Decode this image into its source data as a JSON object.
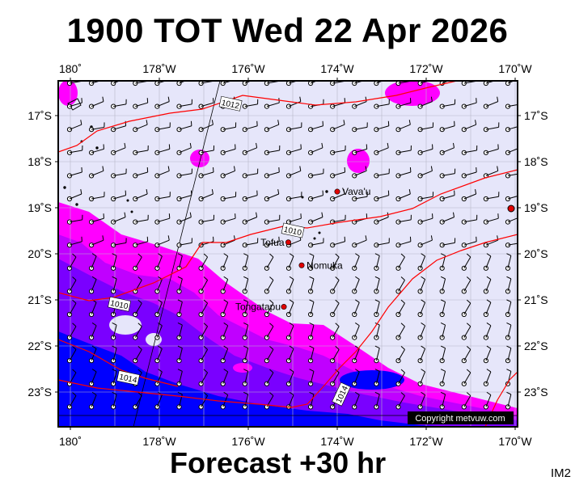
{
  "title": "1900 TOT Wed 22 Apr 2026",
  "subtitle": "Forecast +30 hr",
  "corner_label": "IM2",
  "copyright": "Copyright metvuw.com",
  "axes": {
    "x_ticks": [
      {
        "lon": 180,
        "label": "180˚"
      },
      {
        "lon": -178,
        "label": "178˚W"
      },
      {
        "lon": -176,
        "label": "176˚W"
      },
      {
        "lon": -174,
        "label": "174˚W"
      },
      {
        "lon": -172,
        "label": "172˚W"
      },
      {
        "lon": -170,
        "label": "170˚W"
      }
    ],
    "y_ticks": [
      {
        "lat": -17,
        "label": "17˚S"
      },
      {
        "lat": -18,
        "label": "18˚S"
      },
      {
        "lat": -19,
        "label": "19˚S"
      },
      {
        "lat": -20,
        "label": "20˚S"
      },
      {
        "lat": -21,
        "label": "21˚S"
      },
      {
        "lat": -22,
        "label": "22˚S"
      },
      {
        "lat": -23,
        "label": "23˚S"
      }
    ]
  },
  "places": [
    {
      "name": "Vava'u",
      "lon": -174.0,
      "lat": -18.65
    },
    {
      "name": "Tofua",
      "lon": -175.1,
      "lat": -19.75
    },
    {
      "name": "Nomuka",
      "lon": -174.8,
      "lat": -20.25
    },
    {
      "name": "Tongatapu",
      "lon": -175.2,
      "lat": -21.15
    }
  ],
  "isobars": [
    {
      "label": "1012",
      "lon": -176.4,
      "lat": -16.75
    },
    {
      "label": "1010",
      "lon": -175.0,
      "lat": -19.5
    },
    {
      "label": "1010",
      "lon": -178.9,
      "lat": -21.1
    },
    {
      "label": "1014",
      "lon": -178.7,
      "lat": -22.7
    },
    {
      "label": "1014",
      "lon": -173.9,
      "lat": -23.05
    }
  ],
  "colors": {
    "background": "#e6e6fa",
    "rain_light": "#ff00ff",
    "rain_medium": "#c000ff",
    "rain_heavy": "#7a00ff",
    "rain_extreme": "#0000ff",
    "isobar": "#ff0000",
    "place_marker": "#e00000"
  }
}
